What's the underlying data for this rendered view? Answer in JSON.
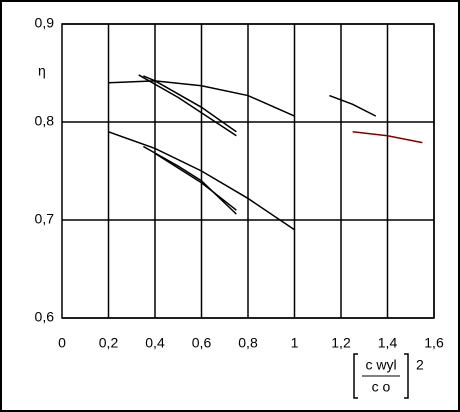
{
  "chart_data": {
    "type": "line",
    "y_label": "η",
    "x_label": {
      "numerator": "c wyl",
      "denominator": "c o",
      "exponent": "2"
    },
    "xlim": [
      0,
      1.6
    ],
    "xticks": [
      0,
      {
        "value": 0.2,
        "label": "0,2"
      },
      {
        "value": 0.4,
        "label": "0,4"
      },
      {
        "value": 0.6,
        "label": "0,6"
      },
      {
        "value": 0.8,
        "label": "0,8"
      },
      1,
      {
        "value": 1.2,
        "label": "1,2"
      },
      {
        "value": 1.4,
        "label": "1,4"
      },
      {
        "value": 1.6,
        "label": "1,6"
      }
    ],
    "ylim": [
      0.6,
      0.9
    ],
    "yticks": [
      {
        "value": 0.6,
        "label": "0,6"
      },
      {
        "value": 0.7,
        "label": "0,7"
      },
      {
        "value": 0.8,
        "label": "0,8"
      },
      {
        "value": 0.9,
        "label": "0,9"
      }
    ],
    "grid": true,
    "series": [
      {
        "color": "#000000",
        "x": [
          0.2,
          0.4,
          0.6,
          0.8,
          1.0
        ],
        "values": [
          0.84,
          0.842,
          0.837,
          0.827,
          0.806
        ]
      },
      {
        "color": "#000000",
        "x": [
          0.35,
          0.4,
          0.6,
          0.75
        ],
        "values": [
          0.847,
          0.842,
          0.815,
          0.79
        ]
      },
      {
        "color": "#000000",
        "x": [
          0.33,
          0.5,
          0.75
        ],
        "values": [
          0.848,
          0.825,
          0.786
        ]
      },
      {
        "color": "#000000",
        "x": [
          0.2,
          0.4,
          0.6,
          0.8,
          1.0
        ],
        "values": [
          0.79,
          0.773,
          0.75,
          0.722,
          0.69
        ]
      },
      {
        "color": "#000000",
        "x": [
          0.35,
          0.5,
          0.6,
          0.75
        ],
        "values": [
          0.775,
          0.755,
          0.74,
          0.706
        ]
      },
      {
        "color": "#000000",
        "x": [
          0.4,
          0.6,
          0.75
        ],
        "values": [
          0.768,
          0.738,
          0.71
        ]
      },
      {
        "color": "#000000",
        "x": [
          1.15,
          1.25,
          1.35
        ],
        "values": [
          0.827,
          0.818,
          0.806
        ]
      },
      {
        "color": "#800000",
        "x": [
          1.25,
          1.4,
          1.55
        ],
        "values": [
          0.79,
          0.786,
          0.779
        ]
      }
    ]
  }
}
